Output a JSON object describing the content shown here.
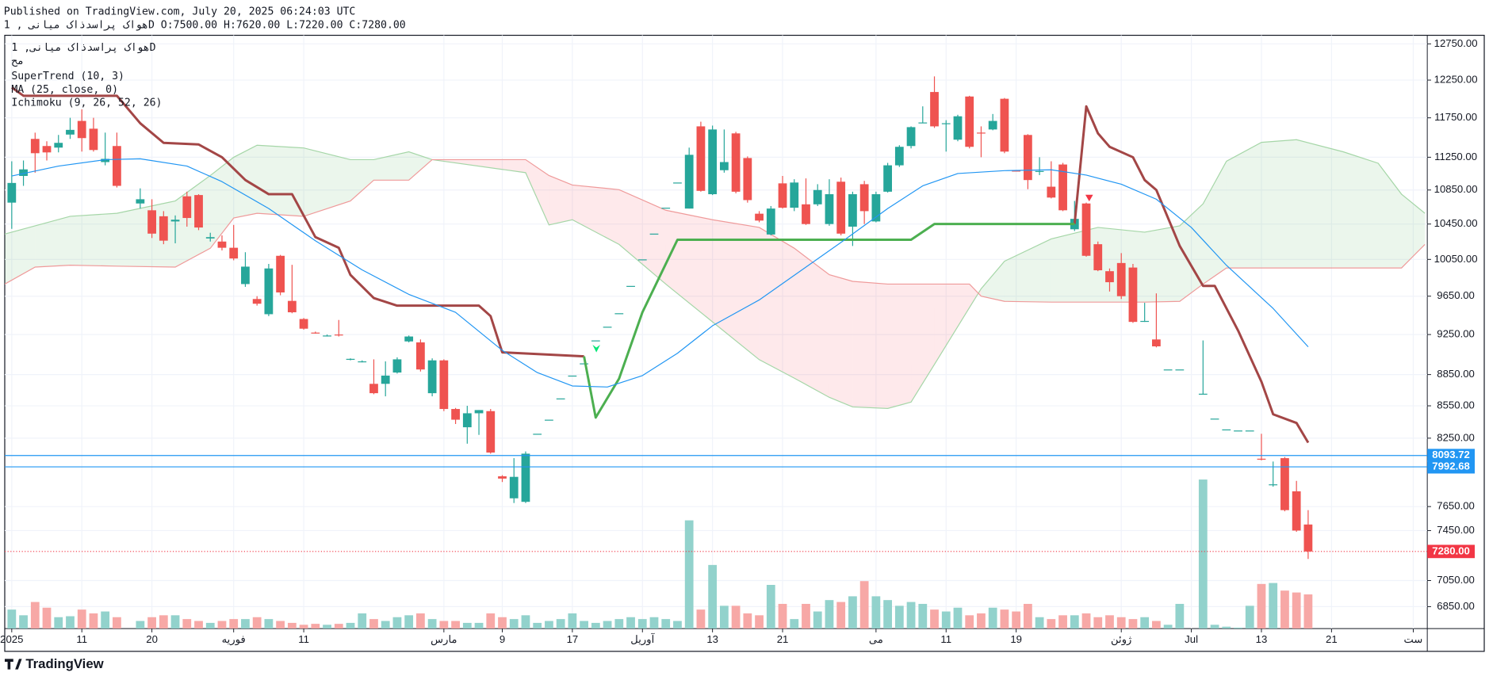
{
  "header": {
    "published": "Published on TradingView.com, July 20, 2025 06:24:03 UTC",
    "ohlc_line": "هواک پراسدذاک میانی , 1D O:7500.00 H:7620.00 L:7220.00 C:7280.00"
  },
  "footer": {
    "brand": "TradingView"
  },
  "chart_data": {
    "type": "candlestick",
    "title": "هواک پراسدذاک میانی, 1D",
    "subtitle": "مح",
    "up_color": "#26a69a",
    "down_color": "#ef5350",
    "volume_up_color": "#92d2cc",
    "volume_down_color": "#f7a8a6",
    "log_y": true,
    "grid": true,
    "xlim": [
      -0.6,
      121.2
    ],
    "ylim": [
      6686,
      12871
    ],
    "yticks": [
      {
        "value": 12750,
        "label": "12750.00"
      },
      {
        "value": 12250,
        "label": "12250.00"
      },
      {
        "value": 11750,
        "label": "11750.00"
      },
      {
        "value": 11250,
        "label": "11250.00"
      },
      {
        "value": 10850,
        "label": "10850.00"
      },
      {
        "value": 10450,
        "label": "10450.00"
      },
      {
        "value": 10050,
        "label": "10050.00"
      },
      {
        "value": 9650,
        "label": "9650.00"
      },
      {
        "value": 9250,
        "label": "9250.00"
      },
      {
        "value": 8850,
        "label": "8850.00"
      },
      {
        "value": 8550,
        "label": "8550.00"
      },
      {
        "value": 8250,
        "label": "8250.00"
      },
      {
        "value": 7650,
        "label": "7650.00"
      },
      {
        "value": 7450,
        "label": "7450.00"
      },
      {
        "value": 7050,
        "label": "7050.00"
      },
      {
        "value": 6850,
        "label": "6850.00"
      }
    ],
    "xticks": [
      {
        "value": 0,
        "label": "2025"
      },
      {
        "value": 6,
        "label": "11"
      },
      {
        "value": 12,
        "label": "20"
      },
      {
        "value": 19,
        "label": "فوریه"
      },
      {
        "value": 25,
        "label": "11"
      },
      {
        "value": 37,
        "label": "مارس"
      },
      {
        "value": 42,
        "label": "9"
      },
      {
        "value": 48,
        "label": "17"
      },
      {
        "value": 54,
        "label": "آوریل"
      },
      {
        "value": 60,
        "label": "13"
      },
      {
        "value": 66,
        "label": "21"
      },
      {
        "value": 74,
        "label": "می"
      },
      {
        "value": 80,
        "label": "11"
      },
      {
        "value": 86,
        "label": "19"
      },
      {
        "value": 95,
        "label": "ژوئن"
      },
      {
        "value": 101,
        "label": "Jul"
      },
      {
        "value": 107,
        "label": "13"
      },
      {
        "value": 113,
        "label": "21"
      },
      {
        "value": 120,
        "label": "ست"
      }
    ],
    "x": [
      0,
      1,
      2,
      3,
      4,
      5,
      6,
      7,
      8,
      9,
      11,
      12,
      13,
      14,
      15,
      16,
      17,
      18,
      19,
      20,
      21,
      22,
      23,
      24,
      25,
      26,
      27,
      28,
      29,
      30,
      31,
      32,
      33,
      34,
      35,
      36,
      37,
      38,
      39,
      40,
      41,
      42,
      43,
      44,
      45,
      46,
      47,
      48,
      49,
      50,
      51,
      52,
      53,
      54,
      55,
      56,
      57,
      58,
      59,
      60,
      61,
      62,
      63,
      64,
      65,
      66,
      67,
      68,
      69,
      70,
      71,
      72,
      73,
      74,
      75,
      76,
      77,
      78,
      79,
      80,
      81,
      82,
      83,
      84,
      85,
      86,
      87,
      88,
      89,
      90,
      91,
      92,
      93,
      94,
      95,
      96,
      97,
      98,
      99,
      100,
      102,
      103,
      104,
      105,
      106,
      107,
      108,
      109,
      110,
      111
    ],
    "open": [
      10700,
      11020,
      11480,
      11390,
      11370,
      11535,
      11710,
      11610,
      11190,
      11390,
      10690,
      10610,
      10540,
      10480,
      10775,
      10790,
      10285,
      10250,
      10180,
      9780,
      9620,
      9460,
      10090,
      9600,
      9410,
      9270,
      9240,
      9250,
      9000,
      8980,
      8760,
      8760,
      8870,
      9180,
      9170,
      8670,
      8990,
      8520,
      8350,
      8480,
      8500,
      7910,
      7720,
      7690,
      8290,
      8420,
      8620,
      8840,
      8960,
      9190,
      9330,
      9470,
      9760,
      10050,
      10340,
      10640,
      10940,
      10630,
      11640,
      10800,
      11090,
      11550,
      11240,
      10570,
      10330,
      10930,
      10640,
      10680,
      10680,
      10450,
      10950,
      10420,
      10920,
      10480,
      10830,
      11150,
      11390,
      11680,
      12090,
      11680,
      11470,
      12030,
      11560,
      11600,
      12000,
      11085,
      11530,
      11080,
      10890,
      11160,
      10390,
      10690,
      10220,
      9920,
      10010,
      9960,
      9390,
      9200,
      8900,
      8900,
      8665,
      8430,
      8330,
      8320,
      8320,
      8065,
      7840,
      8070,
      7780,
      7500
    ],
    "high": [
      11200,
      11210,
      11560,
      11450,
      11530,
      11750,
      11860,
      11750,
      11560,
      11560,
      10870,
      10740,
      10600,
      10550,
      10830,
      10800,
      10350,
      10320,
      10440,
      10130,
      9650,
      10000,
      10100,
      9990,
      9420,
      9280,
      9250,
      9400,
      9010,
      8990,
      9000,
      8980,
      9020,
      9240,
      9200,
      9010,
      9000,
      8530,
      8550,
      8510,
      8520,
      7920,
      8070,
      8130,
      8290,
      8420,
      8620,
      8840,
      8960,
      9190,
      9330,
      9470,
      9760,
      10050,
      10340,
      10640,
      10940,
      11370,
      11700,
      11650,
      11600,
      11570,
      11260,
      10600,
      10660,
      11020,
      10980,
      10990,
      10920,
      10980,
      11000,
      10830,
      10960,
      10830,
      11180,
      11400,
      11640,
      11900,
      12300,
      11720,
      11790,
      12040,
      11640,
      11800,
      12010,
      11090,
      11540,
      11250,
      11200,
      11180,
      10720,
      10700,
      10250,
      9950,
      10120,
      10000,
      9580,
      9680,
      8900,
      8900,
      9190,
      8430,
      8330,
      8320,
      8320,
      8290,
      8040,
      8080,
      7870,
      7620
    ],
    "low": [
      10395,
      10900,
      11060,
      11210,
      11310,
      11480,
      11320,
      11320,
      11150,
      10880,
      10630,
      10290,
      10220,
      10230,
      10420,
      10380,
      10250,
      10150,
      10040,
      9750,
      9550,
      9440,
      9660,
      9470,
      9300,
      9260,
      9230,
      9230,
      8990,
      8970,
      8660,
      8640,
      8860,
      9170,
      8880,
      8640,
      8500,
      8380,
      8200,
      8280,
      8110,
      7860,
      7680,
      7680,
      8290,
      8420,
      8620,
      8840,
      8960,
      9190,
      9330,
      9470,
      9760,
      10050,
      10340,
      10640,
      10940,
      10630,
      10830,
      10790,
      11060,
      10810,
      10700,
      10470,
      10320,
      10630,
      10600,
      10440,
      10660,
      10430,
      10320,
      10200,
      10450,
      10470,
      10820,
      11130,
      11360,
      11680,
      11620,
      11320,
      11450,
      11360,
      11250,
      11590,
      11300,
      11075,
      10860,
      11030,
      10750,
      10600,
      10370,
      10080,
      9920,
      9700,
      9620,
      9370,
      9380,
      9120,
      8900,
      8900,
      8660,
      8430,
      8330,
      8320,
      8320,
      8050,
      7820,
      7610,
      7440,
      7220
    ],
    "close": [
      10935,
      11100,
      11300,
      11310,
      11430,
      11595,
      11490,
      11340,
      11230,
      10900,
      10740,
      10340,
      10260,
      10500,
      10520,
      10410,
      10300,
      10180,
      10060,
      9970,
      9570,
      9950,
      9690,
      9480,
      9310,
      9265,
      9240,
      9245,
      9005,
      8980,
      8670,
      8840,
      9000,
      9230,
      8900,
      8990,
      8520,
      8420,
      8480,
      8510,
      8120,
      7890,
      7905,
      8110,
      8290,
      8420,
      8620,
      8840,
      8960,
      9190,
      9330,
      9470,
      9760,
      10050,
      10340,
      10640,
      10940,
      11280,
      10840,
      11600,
      11190,
      10830,
      10730,
      10490,
      10630,
      10640,
      10940,
      10450,
      10850,
      10800,
      10340,
      10800,
      10600,
      10800,
      11150,
      11380,
      11630,
      11690,
      11640,
      11680,
      11770,
      11380,
      11550,
      11710,
      11320,
      11080,
      10970,
      11080,
      10760,
      10610,
      10510,
      10090,
      9930,
      9800,
      9650,
      9380,
      9390,
      9130,
      8900,
      8900,
      8665,
      8430,
      8330,
      8320,
      8320,
      8060,
      7840,
      7620,
      7450,
      7280
    ],
    "volume": [
      20,
      14,
      28,
      22,
      12,
      13,
      20,
      16,
      18,
      12,
      8,
      12,
      14,
      14,
      10,
      8,
      6,
      8,
      10,
      10,
      12,
      10,
      8,
      6,
      4,
      5,
      4,
      5,
      6,
      16,
      10,
      8,
      12,
      14,
      16,
      10,
      8,
      8,
      6,
      6,
      16,
      12,
      10,
      14,
      6,
      8,
      10,
      16,
      8,
      6,
      8,
      10,
      12,
      10,
      12,
      10,
      8,
      114,
      20,
      67,
      24,
      24,
      16,
      14,
      46,
      26,
      10,
      26,
      18,
      30,
      28,
      34,
      50,
      34,
      30,
      24,
      28,
      26,
      20,
      18,
      22,
      14,
      16,
      22,
      20,
      18,
      26,
      12,
      10,
      14,
      14,
      16,
      12,
      14,
      12,
      10,
      12,
      8,
      4,
      26,
      157,
      4,
      2,
      1,
      24,
      47,
      48,
      40,
      38,
      36
    ],
    "price_lines": [
      {
        "price": 8093.72,
        "color": "#2196f3",
        "style": "solid"
      },
      {
        "price": 7992.68,
        "color": "#2196f3",
        "style": "solid"
      },
      {
        "price": {
          "value": 7280,
          "label": "7280.00"
        },
        "color": "#f23645",
        "style": "dotted"
      }
    ],
    "series": [
      {
        "name": "SuperTrend (10, 3)",
        "type": "line",
        "color": "#a34646",
        "x": [
          0,
          1,
          9,
          11,
          13,
          16,
          18,
          20,
          22,
          24,
          26,
          28,
          29,
          31,
          33,
          40,
          41,
          42,
          49,
          null,
          91,
          92,
          93,
          94,
          96,
          97,
          98,
          100,
          102,
          103,
          105,
          107,
          108,
          110,
          111
        ],
        "values": [
          12150,
          12040,
          12040,
          11680,
          11430,
          11410,
          11250,
          10970,
          10800,
          10800,
          10300,
          10180,
          9880,
          9630,
          9550,
          9550,
          9440,
          9070,
          9030,
          null,
          10450,
          11900,
          11550,
          11380,
          11250,
          10970,
          10850,
          10200,
          9760,
          9760,
          9290,
          8780,
          8470,
          8390,
          8210
        ]
      },
      {
        "type": "line",
        "color": "#4caf50",
        "x": [
          49,
          50,
          52,
          54,
          57,
          77,
          79,
          91
        ],
        "values": [
          9030,
          8440,
          8810,
          9480,
          10270,
          10270,
          10450,
          10450
        ]
      },
      {
        "name": "MA (25, close, 0)",
        "type": "line",
        "color": "#2196f3",
        "x": [
          0,
          4,
          8,
          11,
          15,
          18,
          22,
          26,
          30,
          34,
          38,
          42,
          45,
          48,
          51,
          54,
          57,
          60,
          64,
          68,
          71,
          75,
          78,
          81,
          85,
          89,
          92,
          95,
          98,
          101,
          104,
          108,
          111
        ],
        "values": [
          11020,
          11140,
          11220,
          11230,
          11140,
          10950,
          10630,
          10260,
          9935,
          9670,
          9480,
          9090,
          8870,
          8740,
          8730,
          8840,
          9060,
          9340,
          9610,
          9965,
          10240,
          10630,
          10900,
          11050,
          11085,
          11095,
          11030,
          10920,
          10740,
          10410,
          9985,
          9520,
          9125
        ]
      },
      {
        "name": "Ichimoku (9, 26, 52, 26)",
        "type": "cloud",
        "color": "#a5d6a7",
        "color2": "#ef9a9a",
        "x": [
          -0.6,
          2,
          5,
          9,
          14,
          17,
          19,
          21,
          25,
          29,
          31,
          34,
          36,
          44,
          46,
          48,
          52,
          56,
          60,
          64,
          67,
          70,
          72,
          75,
          77,
          79,
          82,
          83,
          85,
          89,
          93,
          97,
          100,
          102,
          104,
          107,
          110,
          114,
          117,
          119,
          121
        ],
        "values": [
          10335,
          10430,
          10540,
          10575,
          10720,
          11025,
          11250,
          11400,
          11365,
          11220,
          11220,
          11318,
          11220,
          11060,
          10440,
          10500,
          10218,
          9780,
          9380,
          8997,
          8815,
          8630,
          8540,
          8525,
          8585,
          8950,
          9530,
          9730,
          10030,
          10280,
          10411,
          10357,
          10430,
          10686,
          11200,
          11436,
          11470,
          11318,
          11175,
          10800,
          10575
        ],
        "values2": [
          9780,
          9965,
          9986,
          9975,
          9965,
          10175,
          10520,
          10575,
          10540,
          10720,
          10969,
          10969,
          11220,
          11220,
          11025,
          10910,
          10855,
          10610,
          10500,
          10411,
          10175,
          9882,
          9810,
          9780,
          9780,
          9780,
          9780,
          9650,
          9595,
          9587,
          9587,
          9587,
          9595,
          9780,
          9955,
          9955,
          9955,
          9955,
          9955,
          9955,
          10218
        ]
      }
    ]
  }
}
